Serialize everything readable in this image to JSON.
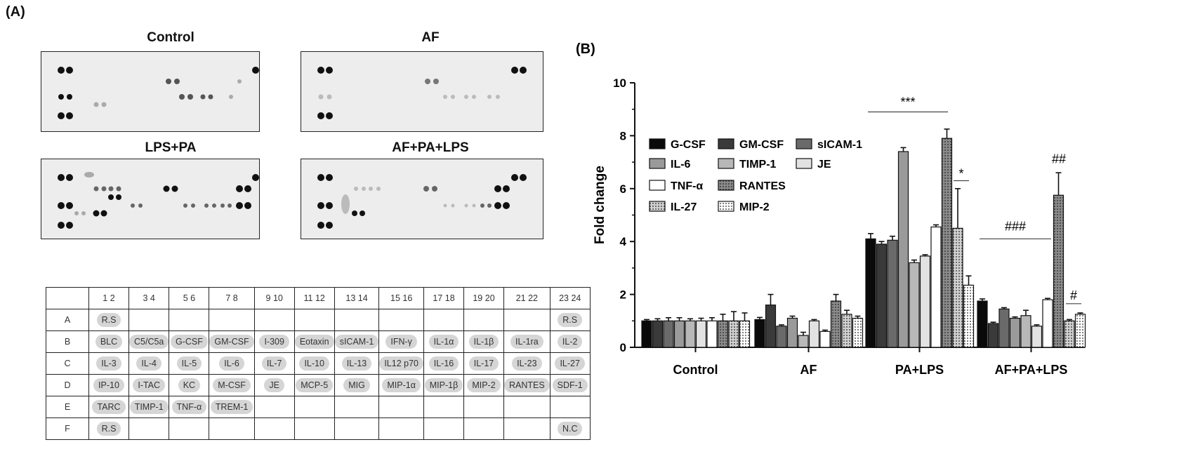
{
  "panel_a": {
    "label": "(A)",
    "blots": [
      {
        "title": "Control"
      },
      {
        "title": "AF"
      },
      {
        "title": "LPS+PA"
      },
      {
        "title": "AF+PA+LPS"
      }
    ],
    "array_table": {
      "columns": [
        "1 2",
        "3 4",
        "5 6",
        "7 8",
        "9 10",
        "11 12",
        "13 14",
        "15 16",
        "17 18",
        "19 20",
        "21 22",
        "23 24"
      ],
      "rows": [
        {
          "label": "A",
          "cells": [
            "R.S",
            "",
            "",
            "",
            "",
            "",
            "",
            "",
            "",
            "",
            "",
            "R.S"
          ]
        },
        {
          "label": "B",
          "cells": [
            "BLC",
            "C5/C5a",
            "G-CSF",
            "GM-CSF",
            "I-309",
            "Eotaxin",
            "sICAM-1",
            "IFN-γ",
            "IL-1α",
            "IL-1β",
            "IL-1ra",
            "IL-2"
          ]
        },
        {
          "label": "C",
          "cells": [
            "IL-3",
            "IL-4",
            "IL-5",
            "IL-6",
            "IL-7",
            "IL-10",
            "IL-13",
            "IL12 p70",
            "IL-16",
            "IL-17",
            "IL-23",
            "IL-27"
          ]
        },
        {
          "label": "D",
          "cells": [
            "IP-10",
            "I-TAC",
            "KC",
            "M-CSF",
            "JE",
            "MCP-5",
            "MIG",
            "MIP-1α",
            "MIP-1β",
            "MIP-2",
            "RANTES",
            "SDF-1"
          ]
        },
        {
          "label": "E",
          "cells": [
            "TARC",
            "TIMP-1",
            "TNF-α",
            "TREM-1",
            "",
            "",
            "",
            "",
            "",
            "",
            "",
            ""
          ]
        },
        {
          "label": "F",
          "cells": [
            "R.S",
            "",
            "",
            "",
            "",
            "",
            "",
            "",
            "",
            "",
            "",
            "N.C"
          ]
        }
      ]
    }
  },
  "chart_data": {
    "type": "bar",
    "panel_label": "(B)",
    "title": "",
    "xlabel": "",
    "ylabel": "Fold change",
    "ylim": [
      0,
      10
    ],
    "yticks": [
      0,
      2,
      4,
      6,
      8,
      10
    ],
    "categories": [
      "Control",
      "AF",
      "PA+LPS",
      "AF+PA+LPS"
    ],
    "legend_position": "top-left",
    "series": [
      {
        "name": "G-CSF",
        "fill": "#0a0a0a",
        "pattern": "solid",
        "values": [
          1.0,
          1.05,
          4.1,
          1.75
        ],
        "errors": [
          0.05,
          0.08,
          0.2,
          0.08
        ]
      },
      {
        "name": "GM-CSF",
        "fill": "#3a3a3a",
        "pattern": "solid",
        "values": [
          1.0,
          1.6,
          3.9,
          0.9
        ],
        "errors": [
          0.08,
          0.4,
          0.1,
          0.05
        ]
      },
      {
        "name": "sICAM-1",
        "fill": "#6a6a6a",
        "pattern": "solid",
        "values": [
          1.0,
          0.8,
          4.05,
          1.45
        ],
        "errors": [
          0.12,
          0.05,
          0.15,
          0.05
        ]
      },
      {
        "name": "IL-6",
        "fill": "#9a9a9a",
        "pattern": "solid",
        "values": [
          1.0,
          1.1,
          7.4,
          1.1
        ],
        "errors": [
          0.12,
          0.08,
          0.15,
          0.05
        ]
      },
      {
        "name": "TIMP-1",
        "fill": "#b8b8b8",
        "pattern": "solid",
        "values": [
          1.0,
          0.45,
          3.2,
          1.2
        ],
        "errors": [
          0.08,
          0.12,
          0.1,
          0.2
        ]
      },
      {
        "name": "JE",
        "fill": "#e2e2e2",
        "pattern": "solid",
        "values": [
          1.0,
          1.0,
          3.45,
          0.8
        ],
        "errors": [
          0.1,
          0.05,
          0.05,
          0.05
        ]
      },
      {
        "name": "TNF-α",
        "fill": "#ffffff",
        "pattern": "solid",
        "values": [
          1.0,
          0.6,
          4.55,
          1.8
        ],
        "errors": [
          0.12,
          0.05,
          0.08,
          0.05
        ]
      },
      {
        "name": "RANTES",
        "fill": "#8a8a8a",
        "pattern": "dots",
        "values": [
          1.0,
          1.75,
          7.9,
          5.75
        ],
        "errors": [
          0.25,
          0.25,
          0.35,
          0.85
        ]
      },
      {
        "name": "IL-27",
        "fill": "#d0d0d0",
        "pattern": "dots",
        "values": [
          1.0,
          1.25,
          4.5,
          1.0
        ],
        "errors": [
          0.35,
          0.15,
          1.5,
          0.05
        ]
      },
      {
        "name": "MIP-2",
        "fill": "#ffffff",
        "pattern": "dots",
        "values": [
          1.0,
          1.1,
          2.35,
          1.25
        ],
        "errors": [
          0.3,
          0.08,
          0.35,
          0.05
        ]
      }
    ],
    "annotations": [
      "***",
      "*",
      "###",
      "##",
      "#"
    ]
  }
}
